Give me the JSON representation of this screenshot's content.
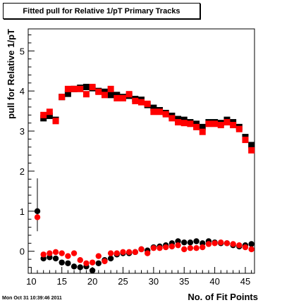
{
  "chart_data": {
    "type": "scatter",
    "title": "Fitted pull for Relative 1/pT Primary Tracks",
    "xlabel": "No. of Fit Points",
    "ylabel": "pull for Relative 1/pT",
    "xlim": [
      9.5,
      46.5
    ],
    "ylim": [
      -0.55,
      5.55
    ],
    "x_ticks": [
      10,
      15,
      20,
      25,
      30,
      35,
      40,
      45
    ],
    "y_ticks": [
      0,
      1,
      2,
      3,
      4,
      5
    ],
    "grid": false,
    "legend": "none",
    "series": [
      {
        "marker": "square",
        "color": "#000000",
        "x": [
          12,
          13,
          14,
          15,
          16,
          17,
          18,
          19,
          20,
          21,
          22,
          23,
          24,
          25,
          26,
          27,
          28,
          29,
          30,
          31,
          32,
          33,
          34,
          35,
          36,
          37,
          38,
          39,
          40,
          41,
          42,
          43,
          44,
          45,
          46
        ],
        "y": [
          3.32,
          3.38,
          3.28,
          3.85,
          3.93,
          4.05,
          4.08,
          4.1,
          4.07,
          4.0,
          3.98,
          3.9,
          3.9,
          3.85,
          3.88,
          3.8,
          3.78,
          3.65,
          3.58,
          3.52,
          3.45,
          3.38,
          3.3,
          3.28,
          3.22,
          3.18,
          3.1,
          3.22,
          3.22,
          3.2,
          3.28,
          3.22,
          3.1,
          2.85,
          2.65
        ]
      },
      {
        "marker": "square",
        "color": "#ff0000",
        "x": [
          12,
          13,
          14,
          15,
          16,
          17,
          18,
          19,
          20,
          21,
          22,
          23,
          24,
          25,
          26,
          27,
          28,
          29,
          30,
          31,
          32,
          33,
          34,
          35,
          36,
          37,
          38,
          39,
          40,
          41,
          42,
          43,
          44,
          45,
          46
        ],
        "y": [
          3.4,
          3.48,
          3.25,
          3.85,
          4.05,
          4.05,
          4.05,
          3.92,
          4.1,
          3.98,
          3.9,
          4.05,
          3.82,
          3.82,
          3.92,
          3.75,
          3.72,
          3.68,
          3.48,
          3.48,
          3.42,
          3.32,
          3.22,
          3.2,
          3.18,
          3.1,
          2.98,
          3.18,
          3.18,
          3.15,
          3.22,
          3.15,
          3.05,
          2.78,
          2.52
        ]
      },
      {
        "marker": "circle",
        "color": "#000000",
        "x": [
          11,
          12,
          13,
          14,
          15,
          16,
          17,
          18,
          19,
          20,
          21,
          22,
          23,
          24,
          25,
          26,
          27,
          28,
          29,
          30,
          31,
          32,
          33,
          34,
          35,
          36,
          37,
          38,
          39,
          40,
          41,
          42,
          43,
          44,
          45,
          46
        ],
        "y": [
          1.0,
          -0.18,
          -0.15,
          -0.18,
          -0.28,
          -0.3,
          -0.38,
          -0.4,
          -0.38,
          -0.48,
          -0.3,
          -0.22,
          -0.18,
          -0.08,
          -0.05,
          -0.05,
          -0.02,
          0.05,
          0.02,
          0.1,
          0.12,
          0.15,
          0.2,
          0.25,
          0.22,
          0.22,
          0.25,
          0.2,
          0.25,
          0.22,
          0.2,
          0.2,
          0.15,
          0.12,
          0.15,
          0.18
        ],
        "err_up": [
          0.82,
          0,
          0,
          0,
          0,
          0,
          0,
          0,
          0,
          0,
          0,
          0,
          0,
          0,
          0,
          0,
          0,
          0,
          0,
          0,
          0,
          0,
          0,
          0,
          0,
          0,
          0,
          0,
          0,
          0,
          0,
          0,
          0,
          0,
          0,
          0
        ],
        "err_down": [
          0.5,
          0,
          0,
          0,
          0,
          0,
          0,
          0,
          0,
          0,
          0,
          0,
          0,
          0,
          0,
          0,
          0,
          0,
          0,
          0,
          0,
          0,
          0,
          0,
          0,
          0,
          0,
          0,
          0,
          0,
          0,
          0,
          0,
          0,
          0,
          0
        ]
      },
      {
        "marker": "circle",
        "color": "#ff0000",
        "x": [
          11,
          12,
          13,
          14,
          15,
          16,
          17,
          18,
          19,
          20,
          21,
          22,
          23,
          24,
          25,
          26,
          27,
          28,
          29,
          30,
          31,
          32,
          33,
          34,
          35,
          36,
          37,
          38,
          39,
          40,
          41,
          42,
          43,
          44,
          45,
          46
        ],
        "y": [
          0.85,
          -0.08,
          -0.05,
          -0.02,
          -0.05,
          -0.12,
          -0.05,
          -0.22,
          -0.3,
          -0.28,
          -0.12,
          -0.25,
          -0.05,
          -0.05,
          -0.02,
          -0.02,
          -0.02,
          0.05,
          -0.05,
          0.08,
          0.08,
          0.1,
          0.12,
          0.15,
          0.05,
          0.08,
          0.08,
          0.1,
          0.18,
          0.2,
          0.22,
          0.2,
          0.18,
          0.15,
          0.1,
          0.05
        ]
      }
    ]
  },
  "footer": {
    "timestamp": "Mon Oct 31 10:39:46 2011"
  }
}
